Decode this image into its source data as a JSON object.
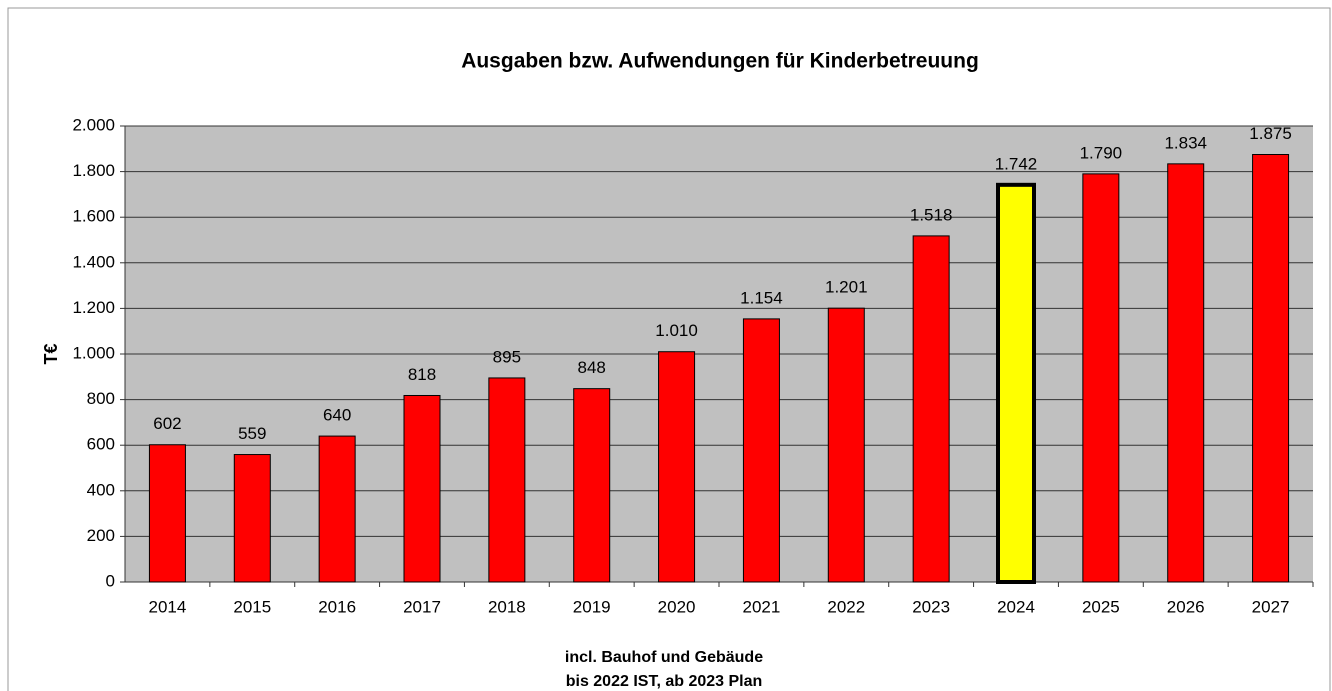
{
  "chart_data": {
    "type": "bar",
    "title": "Ausgaben bzw. Aufwendungen  für Kinderbetreuung",
    "ylabel": "T€",
    "notes": [
      "incl. Bauhof und Gebäude",
      "bis 2022 IST, ab 2023 Plan"
    ],
    "categories": [
      "2014",
      "2015",
      "2016",
      "2017",
      "2018",
      "2019",
      "2020",
      "2021",
      "2022",
      "2023",
      "2024",
      "2025",
      "2026",
      "2027"
    ],
    "values": [
      602,
      559,
      640,
      818,
      895,
      848,
      1010,
      1154,
      1201,
      1518,
      1742,
      1790,
      1834,
      1875
    ],
    "value_labels": [
      "602",
      "559",
      "640",
      "818",
      "895",
      "848",
      "1.010",
      "1.154",
      "1.201",
      "1.518",
      "1.742",
      "1.790",
      "1.834",
      "1.875"
    ],
    "colors": [
      "#ff0000",
      "#ff0000",
      "#ff0000",
      "#ff0000",
      "#ff0000",
      "#ff0000",
      "#ff0000",
      "#ff0000",
      "#ff0000",
      "#ff0000",
      "#ffff00",
      "#ff0000",
      "#ff0000",
      "#ff0000"
    ],
    "edge_widths": [
      1,
      1,
      1,
      1,
      1,
      1,
      1,
      1,
      1,
      1,
      4,
      1,
      1,
      1
    ],
    "ylim": [
      0,
      2000
    ],
    "yticks": [
      0,
      200,
      400,
      600,
      800,
      {
        "value": 1000,
        "label": "1.000"
      },
      {
        "value": 1200,
        "label": "1.200"
      },
      {
        "value": 1400,
        "label": "1.400"
      },
      {
        "value": 1600,
        "label": "1.600"
      },
      {
        "value": 1800,
        "label": "1.800"
      },
      {
        "value": 2000,
        "label": "2.000"
      }
    ],
    "grid": true
  }
}
